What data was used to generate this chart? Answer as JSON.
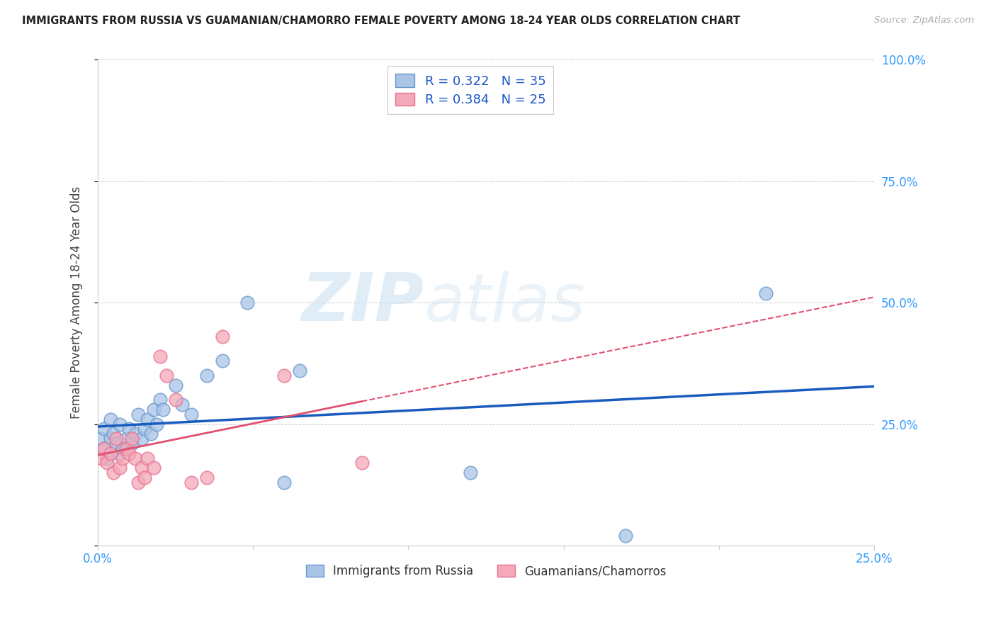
{
  "title": "IMMIGRANTS FROM RUSSIA VS GUAMANIAN/CHAMORRO FEMALE POVERTY AMONG 18-24 YEAR OLDS CORRELATION CHART",
  "source": "Source: ZipAtlas.com",
  "ylabel": "Female Poverty Among 18-24 Year Olds",
  "xlim": [
    0.0,
    0.25
  ],
  "ylim": [
    0.0,
    1.0
  ],
  "xticks": [
    0.0,
    0.05,
    0.1,
    0.15,
    0.2,
    0.25
  ],
  "xticklabels": [
    "0.0%",
    "",
    "",
    "",
    "",
    "25.0%"
  ],
  "yticks": [
    0.0,
    0.25,
    0.5,
    0.75,
    1.0
  ],
  "yticklabels": [
    "",
    "25.0%",
    "50.0%",
    "75.0%",
    "100.0%"
  ],
  "blue_color": "#aac4e8",
  "pink_color": "#f4a8b8",
  "blue_edge": "#6699cc",
  "pink_edge": "#e87090",
  "line_blue": "#1a5bbf",
  "line_pink": "#e05070",
  "legend_R1": "0.322",
  "legend_N1": "35",
  "legend_R2": "0.384",
  "legend_N2": "25",
  "legend_label1": "Immigrants from Russia",
  "legend_label2": "Guamanians/Chamorros",
  "watermark_zip": "ZIP",
  "watermark_atlas": "atlas",
  "blue_scatter_x": [
    0.001,
    0.002,
    0.002,
    0.003,
    0.004,
    0.004,
    0.005,
    0.006,
    0.007,
    0.007,
    0.008,
    0.009,
    0.01,
    0.011,
    0.012,
    0.013,
    0.014,
    0.015,
    0.016,
    0.017,
    0.018,
    0.019,
    0.02,
    0.021,
    0.025,
    0.027,
    0.03,
    0.035,
    0.04,
    0.048,
    0.06,
    0.065,
    0.12,
    0.17,
    0.215
  ],
  "blue_scatter_y": [
    0.22,
    0.2,
    0.24,
    0.18,
    0.22,
    0.26,
    0.23,
    0.21,
    0.19,
    0.25,
    0.2,
    0.22,
    0.24,
    0.21,
    0.23,
    0.27,
    0.22,
    0.24,
    0.26,
    0.23,
    0.28,
    0.25,
    0.3,
    0.28,
    0.33,
    0.29,
    0.27,
    0.35,
    0.38,
    0.5,
    0.13,
    0.36,
    0.15,
    0.02,
    0.52
  ],
  "pink_scatter_x": [
    0.001,
    0.002,
    0.003,
    0.004,
    0.005,
    0.006,
    0.007,
    0.008,
    0.009,
    0.01,
    0.011,
    0.012,
    0.013,
    0.014,
    0.015,
    0.016,
    0.018,
    0.02,
    0.022,
    0.025,
    0.03,
    0.035,
    0.04,
    0.06,
    0.085
  ],
  "pink_scatter_y": [
    0.18,
    0.2,
    0.17,
    0.19,
    0.15,
    0.22,
    0.16,
    0.18,
    0.2,
    0.19,
    0.22,
    0.18,
    0.13,
    0.16,
    0.14,
    0.18,
    0.16,
    0.39,
    0.35,
    0.3,
    0.13,
    0.14,
    0.43,
    0.35,
    0.17
  ]
}
